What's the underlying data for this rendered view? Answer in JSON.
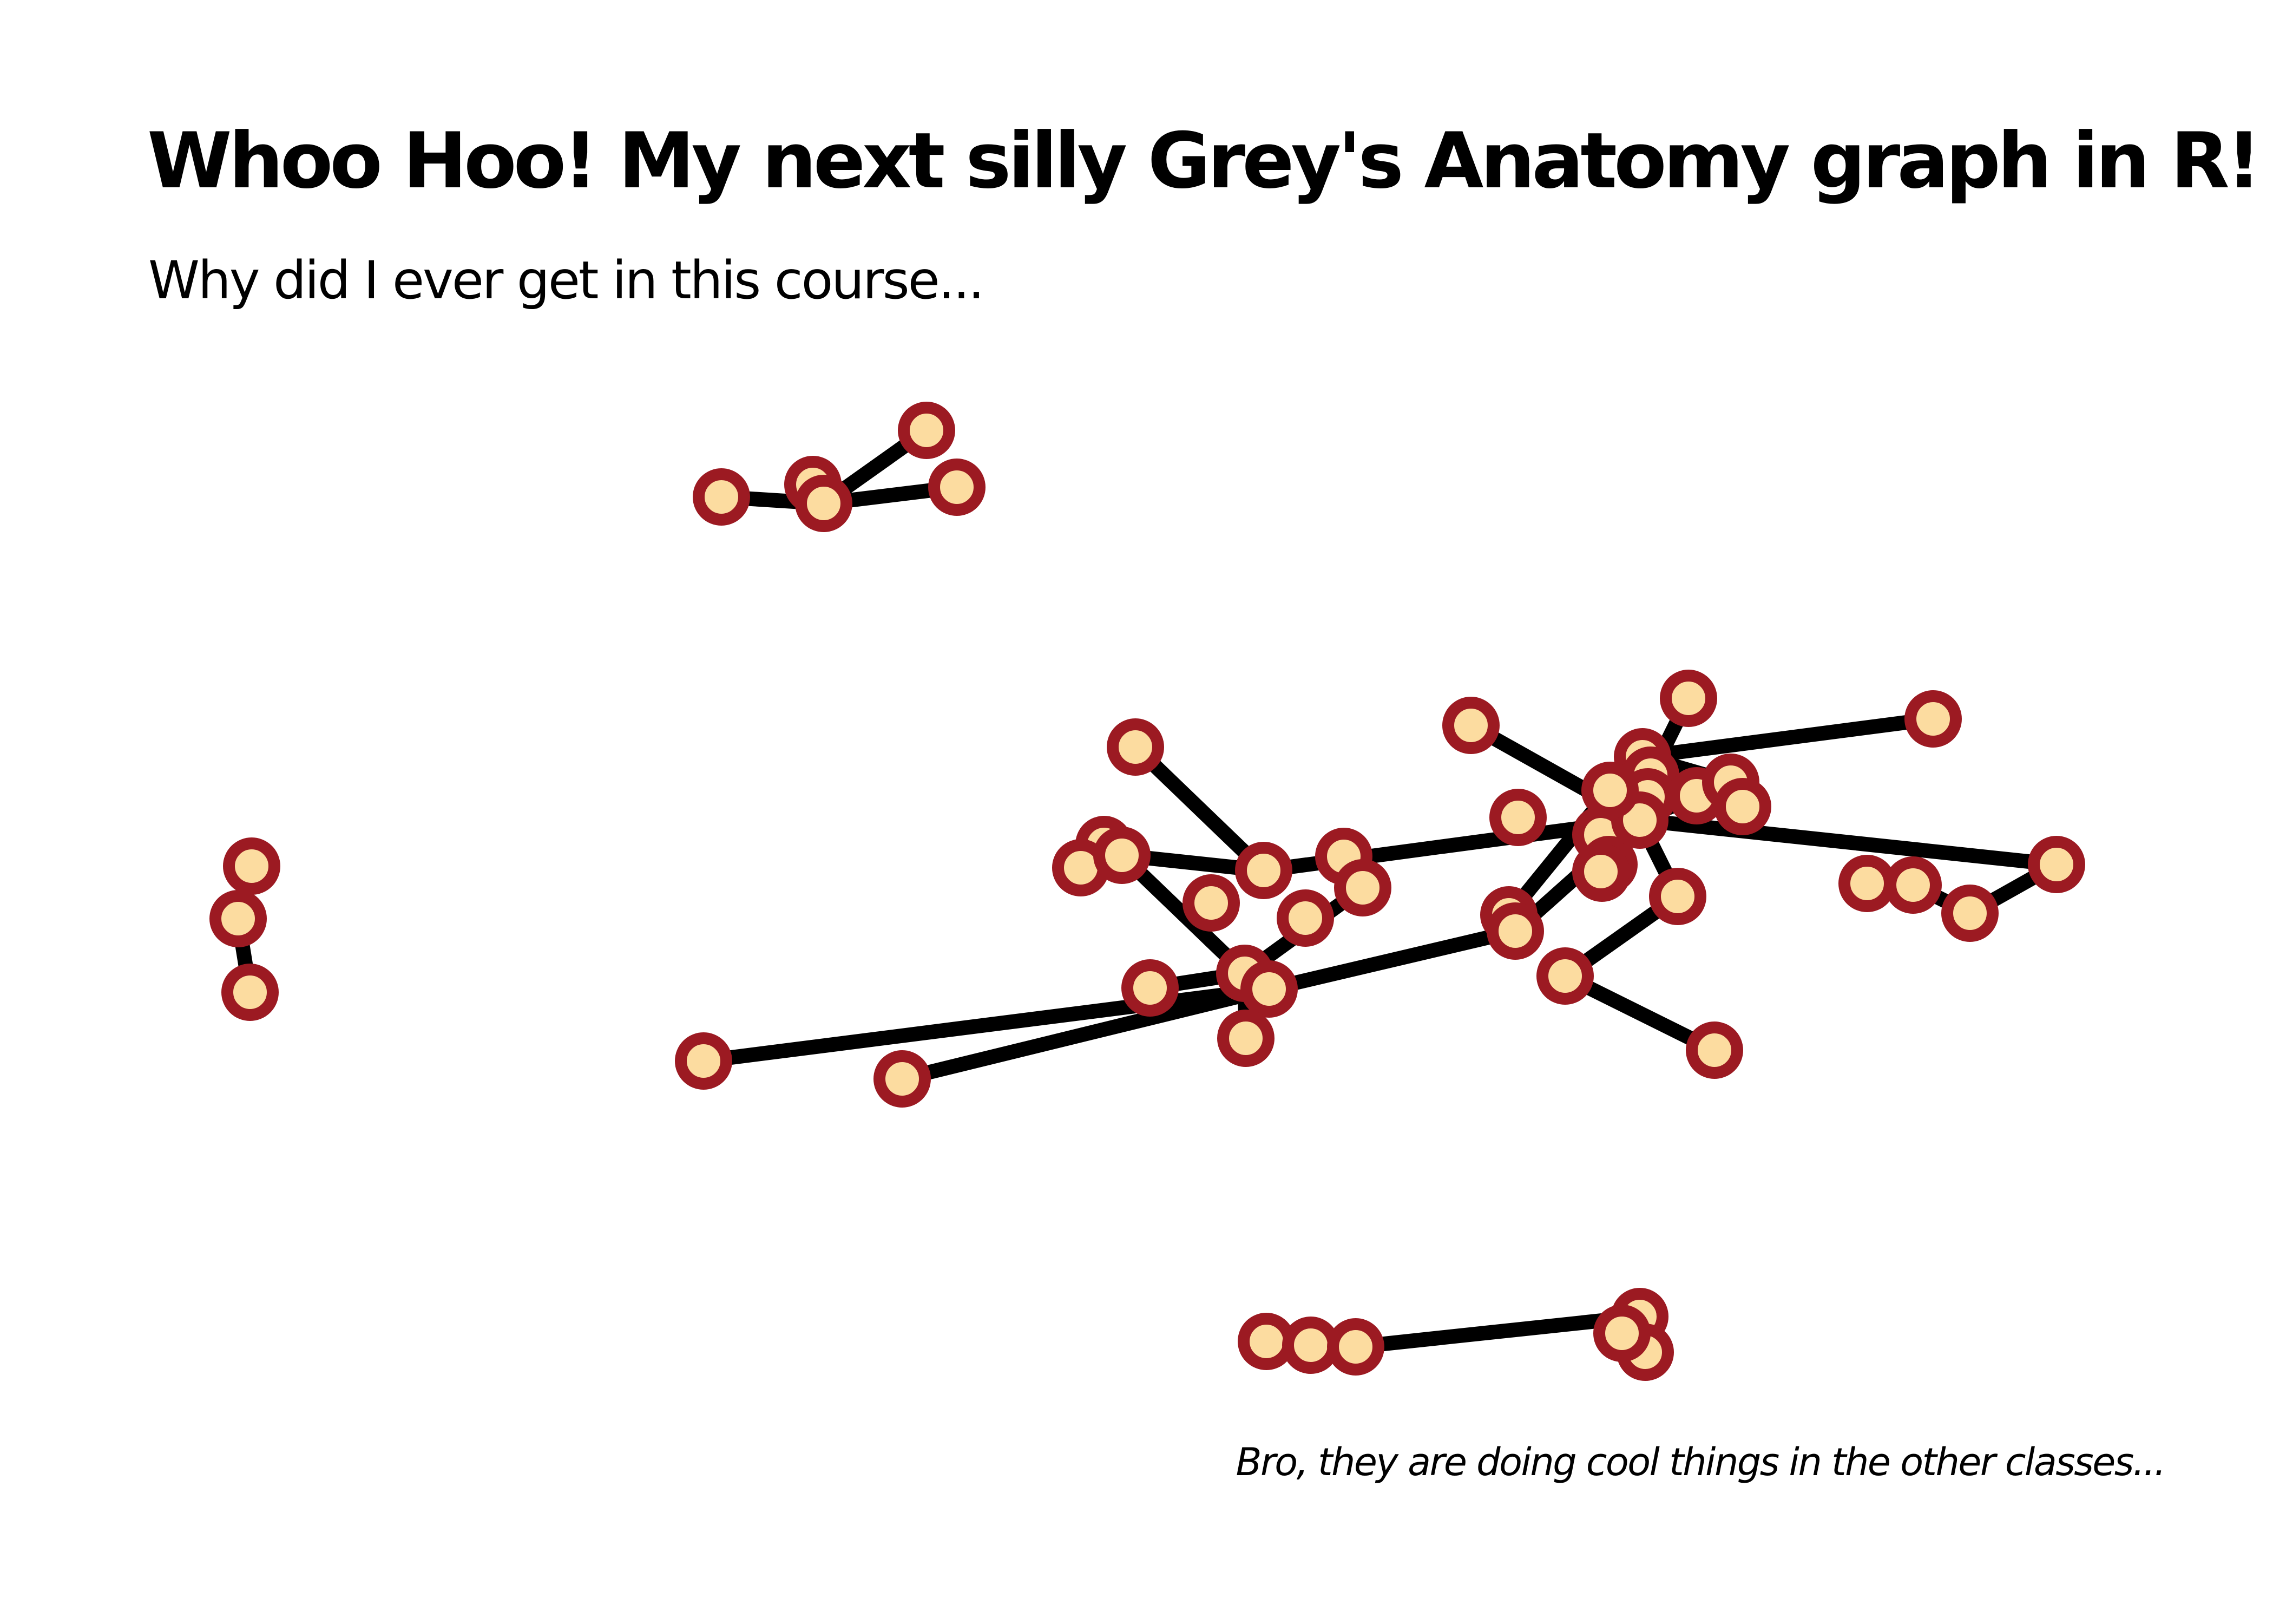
{
  "title": "Whoo Hoo! My next silly Grey's Anatomy graph in R!",
  "subtitle": "Why did I ever get in this course...",
  "caption": "Bro, they are doing cool things in the other classes...",
  "colors": {
    "background": "#ffffff",
    "edge": "#000000",
    "node_fill": "#fcdca0",
    "node_stroke": "#9c1a22"
  }
}
